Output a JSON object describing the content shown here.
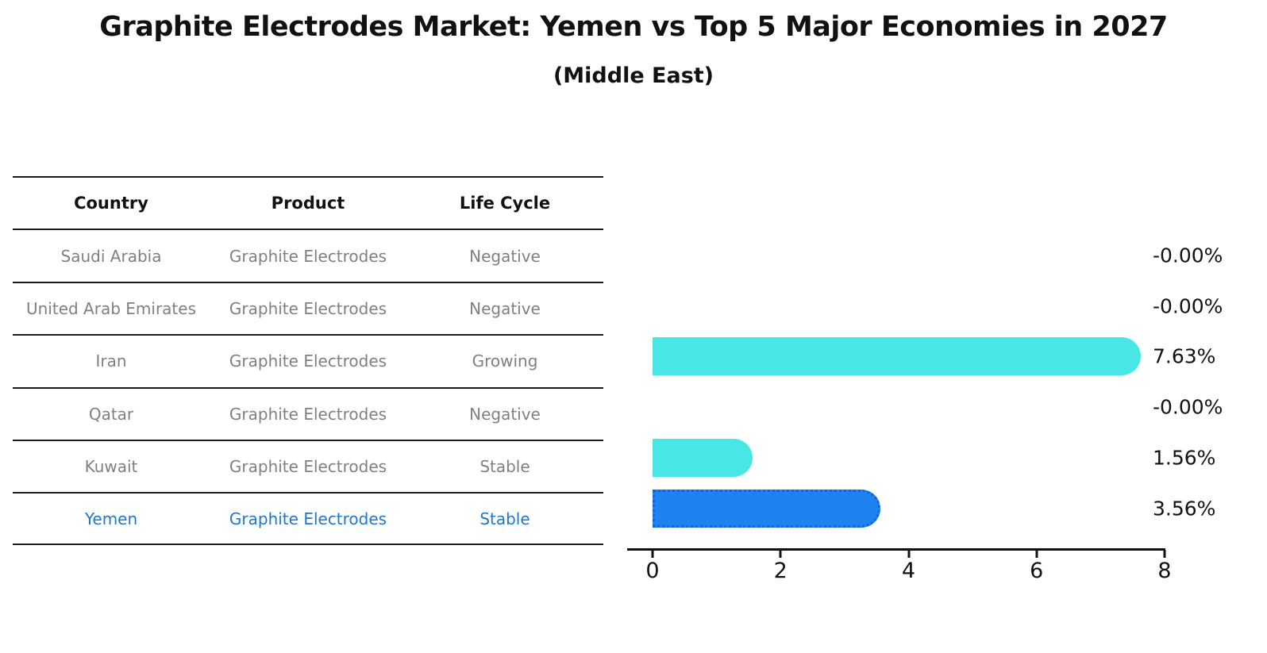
{
  "title": "Graphite Electrodes Market: Yemen vs Top 5 Major Economies in 2027",
  "subtitle": "(Middle East)",
  "table": {
    "headers": [
      "Country",
      "Product",
      "Life Cycle"
    ],
    "rows": [
      {
        "country": "Saudi Arabia",
        "product": "Graphite Electrodes",
        "life_cycle": "Negative"
      },
      {
        "country": "United Arab Emirates",
        "product": "Graphite Electrodes",
        "life_cycle": "Negative"
      },
      {
        "country": "Iran",
        "product": "Graphite Electrodes",
        "life_cycle": "Growing"
      },
      {
        "country": "Qatar",
        "product": "Graphite Electrodes",
        "life_cycle": "Negative"
      },
      {
        "country": "Kuwait",
        "product": "Graphite Electrodes",
        "life_cycle": "Stable"
      },
      {
        "country": "Yemen",
        "product": "Graphite Electrodes",
        "life_cycle": "Stable"
      }
    ],
    "highlighted_row": "Yemen"
  },
  "chart_data": {
    "type": "bar",
    "orientation": "horizontal",
    "title": "Graphite Electrodes Market: Yemen vs Top 5 Major Economies in 2027 (Middle East)",
    "categories": [
      "Saudi Arabia",
      "United Arab Emirates",
      "Iran",
      "Qatar",
      "Kuwait",
      "Yemen"
    ],
    "values": [
      -0.0,
      -0.0,
      7.63,
      -0.0,
      1.56,
      3.56
    ],
    "value_labels": [
      "-0.00%",
      "-0.00%",
      "7.63%",
      "-0.00%",
      "1.56%",
      "3.56%"
    ],
    "xlim": [
      0,
      8
    ],
    "x_ticks": [
      0,
      2,
      4,
      6,
      8
    ],
    "x_tick_labels": [
      "0",
      "2",
      "4",
      "6",
      "8"
    ],
    "highlight_index": 5,
    "grid": false,
    "legend": false,
    "bar_color": "#48E7E5",
    "highlight_bar_color": "#1E82F0",
    "highlight_border_color": "#1565D0"
  },
  "colors": {
    "muted_text": "#808080",
    "highlight_text": "#2178C8",
    "axis": "#111111",
    "background": "#FFFFFF"
  }
}
